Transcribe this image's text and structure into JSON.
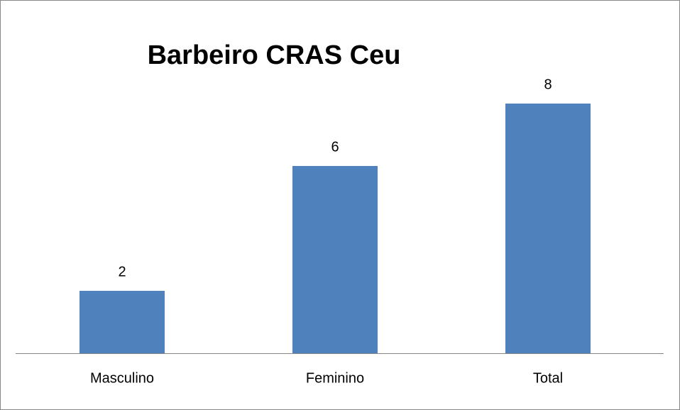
{
  "chart_data": {
    "type": "bar",
    "title": "Barbeiro CRAS Ceu",
    "categories": [
      "Masculino",
      "Feminino",
      "Total"
    ],
    "values": [
      2,
      6,
      8
    ],
    "color": "#4f81bd"
  }
}
